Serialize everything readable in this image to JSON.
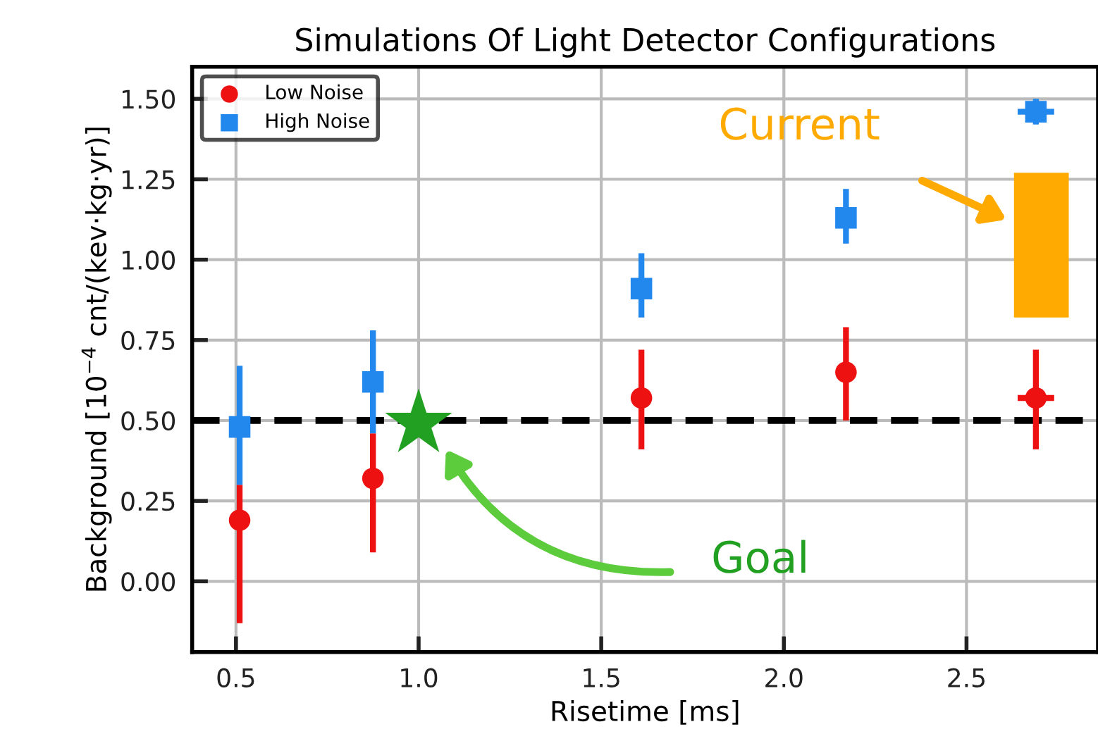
{
  "chart_data": {
    "type": "scatter",
    "title": "Simulations Of Light Detector Configurations",
    "xlabel": "Risetime [ms]",
    "ylabel": "Background [10$^{−4}$ cnt/(kev·kg·yr)]",
    "series": [
      {
        "name": "Low Noise",
        "marker": "circle",
        "color": "#ee1111",
        "x": [
          0.51,
          0.875,
          1.61,
          2.17,
          2.69
        ],
        "values": [
          0.19,
          0.32,
          0.57,
          0.65,
          0.57
        ],
        "errors": [
          [
            -0.13,
            0.3
          ],
          [
            0.09,
            0.46
          ],
          [
            0.41,
            0.72
          ],
          [
            0.5,
            0.79
          ],
          [
            0.41,
            0.72
          ]
        ],
        "xerrors": [
          null,
          null,
          null,
          null,
          0.05
        ]
      },
      {
        "name": "High Noise",
        "marker": "square",
        "color": "#2288ee",
        "x": [
          0.51,
          0.875,
          1.61,
          2.17,
          2.69
        ],
        "values": [
          0.48,
          0.62,
          0.91,
          1.13,
          1.46
        ],
        "errors": [
          [
            0.3,
            0.67
          ],
          [
            0.46,
            0.78
          ],
          [
            0.82,
            1.02
          ],
          [
            1.05,
            1.22
          ],
          [
            1.42,
            1.5
          ]
        ],
        "xerrors": [
          null,
          null,
          null,
          null,
          0.05
        ]
      },
      {
        "marker": "star",
        "color": "#22a022",
        "x": [
          1.0
        ],
        "values": [
          0.49
        ]
      },
      {
        "type": "bar",
        "color": "#ffaa00",
        "x": [
          2.705
        ],
        "base": [
          0.82
        ],
        "values": [
          0.45
        ]
      }
    ],
    "annotations": [
      "Current",
      "Goal"
    ],
    "ref_lines": [
      {
        "axis": "y",
        "value": 0.5,
        "color": "#000000",
        "line_style": "dashed"
      }
    ],
    "xlim": [
      0.38,
      2.86
    ],
    "ylim": [
      -0.22,
      1.6
    ],
    "xticks": [
      0.5,
      {
        "value": 1.0,
        "label": "1.0"
      },
      1.5,
      {
        "value": 2.0,
        "label": "2.0"
      },
      2.5
    ],
    "yticks": [
      {
        "value": 0,
        "label": "0.00"
      },
      0.25,
      {
        "value": 0.5,
        "label": "0.50"
      },
      0.75,
      {
        "value": 1,
        "label": "1.00"
      },
      1.25,
      {
        "value": 1.5,
        "label": "1.50"
      }
    ],
    "grid": true,
    "legend": "top left"
  }
}
